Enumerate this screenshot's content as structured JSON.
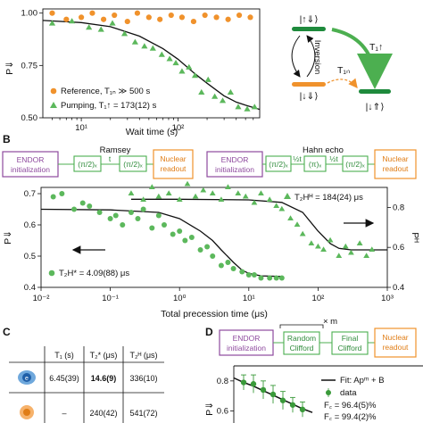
{
  "panel_labels": {
    "b": "B",
    "c": "C",
    "d": "D"
  },
  "chart_data": [
    {
      "type": "scatter",
      "x_scale": "log",
      "xlim": [
        4,
        700
      ],
      "ylim": [
        0.5,
        1.02
      ],
      "xlabel": "Wait time (s)",
      "ylabel": "P⇓",
      "xticks": [
        "10¹",
        "10²"
      ],
      "yticks": [
        "0.50",
        "0.75",
        "1.00"
      ],
      "series": [
        {
          "name": "Reference, T₁ₙ ≫ 500 s",
          "marker": "circle",
          "color": "#f0922c",
          "x": [
            5,
            7,
            10,
            13,
            17,
            22,
            30,
            38,
            50,
            65,
            85,
            110,
            145,
            190,
            250,
            330,
            430,
            560
          ],
          "y": [
            1.0,
            0.97,
            0.98,
            1.0,
            0.97,
            0.99,
            0.96,
            1.0,
            0.98,
            0.97,
            0.99,
            0.98,
            0.96,
            0.99,
            0.98,
            0.97,
            0.99,
            0.98
          ]
        },
        {
          "name": "Pumping, T₁↑ = 173(12) s",
          "marker": "triangle",
          "color": "#5cb85c",
          "x": [
            5,
            8,
            12,
            16,
            21,
            28,
            36,
            45,
            55,
            68,
            82,
            95,
            110,
            130,
            150,
            175,
            205,
            240,
            290,
            350,
            420,
            520,
            620
          ],
          "y": [
            0.95,
            0.96,
            0.93,
            0.92,
            0.95,
            0.9,
            0.86,
            0.84,
            0.83,
            0.8,
            0.78,
            0.76,
            0.72,
            0.74,
            0.7,
            0.62,
            0.68,
            0.6,
            0.58,
            0.62,
            0.55,
            0.54,
            0.55
          ]
        }
      ],
      "fit": {
        "x": [
          4,
          10,
          20,
          40,
          70,
          100,
          150,
          200,
          300,
          400,
          500,
          700
        ],
        "y": [
          0.965,
          0.955,
          0.935,
          0.89,
          0.83,
          0.78,
          0.71,
          0.665,
          0.605,
          0.575,
          0.56,
          0.54
        ]
      }
    },
    {
      "type": "scatter",
      "x_scale": "log",
      "xlim": [
        0.01,
        1000
      ],
      "ylim": [
        0.4,
        0.72
      ],
      "y2lim": [
        0.4,
        0.9
      ],
      "xlabel": "Total precession time (μs)",
      "ylabel": "P⇓",
      "y2label": "Pᴴ",
      "xticks": [
        "10⁻²",
        "10⁻¹",
        "10⁰",
        "10¹",
        "10²",
        "10³"
      ],
      "yticks": [
        "0.4",
        "0.5",
        "0.6",
        "0.7"
      ],
      "y2ticks": [
        "0.4",
        "0.6",
        "0.8"
      ],
      "annotations": {
        "ramsey": "T₂H* = 4.09(88) μs",
        "hahn": "T₂Hᴴ = 184(24) μs"
      },
      "series": [
        {
          "name": "Ramsey",
          "marker": "circle",
          "color": "#5cb85c",
          "x": [
            0.015,
            0.02,
            0.03,
            0.04,
            0.05,
            0.07,
            0.1,
            0.12,
            0.15,
            0.2,
            0.25,
            0.3,
            0.4,
            0.5,
            0.6,
            0.8,
            1.0,
            1.2,
            1.5,
            2,
            2.5,
            3,
            4,
            5,
            6,
            8,
            10,
            12,
            15,
            20,
            25,
            30
          ],
          "y": [
            0.69,
            0.7,
            0.65,
            0.67,
            0.66,
            0.64,
            0.62,
            0.63,
            0.6,
            0.64,
            0.62,
            0.65,
            0.59,
            0.63,
            0.6,
            0.57,
            0.58,
            0.55,
            0.56,
            0.52,
            0.53,
            0.5,
            0.47,
            0.48,
            0.46,
            0.45,
            0.44,
            0.44,
            0.43,
            0.43,
            0.43,
            0.43
          ]
        },
        {
          "name": "Hahn echo",
          "marker": "triangle",
          "color": "#5cb85c",
          "x": [
            0.2,
            0.3,
            0.4,
            0.5,
            0.7,
            1.0,
            1.3,
            1.7,
            2.2,
            3,
            4,
            5,
            7,
            9,
            12,
            15,
            20,
            25,
            30,
            40,
            50,
            60,
            80,
            100,
            120,
            150,
            200,
            250,
            300,
            400,
            500,
            600
          ],
          "y": [
            0.7,
            0.68,
            0.72,
            0.69,
            0.7,
            0.68,
            0.73,
            0.69,
            0.71,
            0.7,
            0.68,
            0.72,
            0.7,
            0.69,
            0.67,
            0.7,
            0.68,
            0.66,
            0.65,
            0.62,
            0.6,
            0.57,
            0.54,
            0.53,
            0.52,
            0.55,
            0.5,
            0.53,
            0.51,
            0.54,
            0.5,
            0.52
          ]
        }
      ],
      "fit_ramsey": {
        "x": [
          0.01,
          0.1,
          0.5,
          1,
          2,
          3,
          4,
          6,
          8,
          10,
          15,
          30
        ],
        "y": [
          0.65,
          0.648,
          0.64,
          0.62,
          0.58,
          0.55,
          0.52,
          0.48,
          0.455,
          0.445,
          0.437,
          0.435
        ]
      },
      "fit_hahn": {
        "x": [
          0.2,
          1,
          10,
          30,
          60,
          100,
          150,
          200,
          300,
          700,
          1000
        ],
        "y": [
          0.682,
          0.682,
          0.68,
          0.672,
          0.64,
          0.58,
          0.54,
          0.525,
          0.52,
          0.52,
          0.52
        ]
      }
    },
    {
      "type": "scatter",
      "x_scale": "linear",
      "ylim": [
        0.52,
        0.9
      ],
      "ylabel": "P⇓",
      "yticks": [
        "0.6",
        "0.8"
      ],
      "legend": {
        "fit": "Fit: Apᵐ + B",
        "data": "data"
      },
      "fidelity_c": "F꜀ = 96.4(5)%",
      "fidelity_partial": "F꜀ = 99.4(2)%",
      "series": [
        {
          "name": "data",
          "marker": "circle",
          "color": "#3a9a3a",
          "x": [
            1,
            2,
            3,
            4,
            5,
            6,
            7
          ],
          "y": [
            0.79,
            0.78,
            0.74,
            0.71,
            0.67,
            0.64,
            0.61
          ],
          "err": [
            0.05,
            0.06,
            0.06,
            0.06,
            0.06,
            0.05,
            0.05
          ]
        }
      ],
      "fit": {
        "x": [
          0,
          1,
          2,
          3,
          4,
          5,
          6,
          7,
          8
        ],
        "y": [
          0.82,
          0.79,
          0.765,
          0.735,
          0.705,
          0.675,
          0.645,
          0.615,
          0.59
        ]
      }
    }
  ],
  "diagram_a": {
    "levels_top": "|↑⇓⟩",
    "levels_bottom_left": "|↓⇓⟩",
    "levels_bottom_right": "|↓⇑⟩",
    "inversion": "Inversion",
    "t1_up": "T₁↑",
    "t1_n": "T₁ₙ"
  },
  "seq_ramsey": {
    "title": "Ramsey",
    "init": [
      "ENDOR",
      "initialization"
    ],
    "p1": "(π/2)ₓ",
    "t": "t",
    "p2": "(π/2)ₓ",
    "readout": [
      "Nuclear",
      "readout"
    ]
  },
  "seq_hahn": {
    "title": "Hahn echo",
    "init": [
      "ENDOR",
      "initialization"
    ],
    "p1": "(π/2)ₓ",
    "half1": "½t",
    "p2": "(π)ₓ",
    "half2": "½t",
    "p3": "(π/2)ₓ",
    "readout": [
      "Nuclear",
      "readout"
    ]
  },
  "seq_d": {
    "init": [
      "ENDOR",
      "initialization"
    ],
    "random": [
      "Random",
      "Clifford"
    ],
    "repeat": "× m",
    "final": [
      "Final",
      "Clifford"
    ],
    "readout": [
      "Nuclear",
      "readout"
    ]
  },
  "table_c": {
    "headers": [
      "T₁ (s)",
      "T₂* (μs)",
      "T₂ᴴ (μs)"
    ],
    "rows": [
      [
        "6.45(39)",
        "14.6(9)",
        "336(10)"
      ],
      [
        "–",
        "240(42)",
        "541(72)"
      ]
    ]
  }
}
